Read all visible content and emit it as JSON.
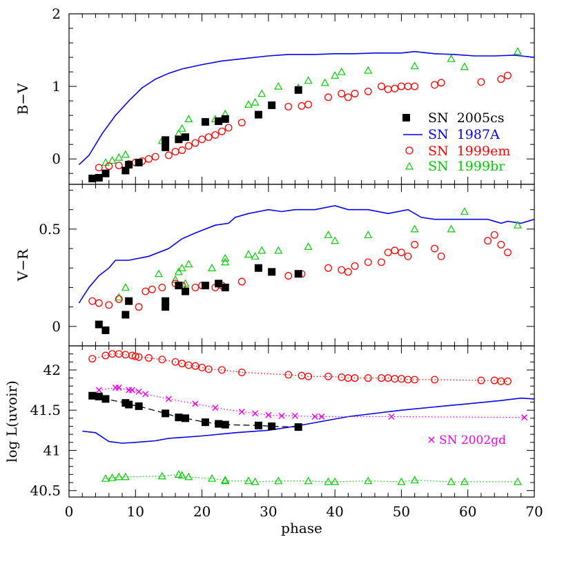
{
  "figure": {
    "xlabel": "phase",
    "xticks": [
      0,
      10,
      20,
      30,
      40,
      50,
      60,
      70
    ],
    "xlim": [
      0,
      70
    ]
  },
  "colors": {
    "sn2005cs": "#000000",
    "sn1987a": "#0000ee",
    "sn1999em": "#ff0000",
    "sn1999br": "#00cc00",
    "sn2002gd": "#ee00ee"
  },
  "legend": {
    "placement": "right",
    "entries": [
      {
        "label": "SN  2005cs",
        "key": "sn2005cs",
        "marker": "square"
      },
      {
        "label": "SN  1987A",
        "key": "sn1987a",
        "marker": "line"
      },
      {
        "label": "SN  1999em",
        "key": "sn1999em",
        "marker": "circle"
      },
      {
        "label": "SN  1999br",
        "key": "sn1999br",
        "marker": "triangle"
      }
    ]
  },
  "annotation": {
    "label": "SN 2002gd",
    "marker": "cross",
    "key": "sn2002gd"
  },
  "chart_data": [
    {
      "type": "scatter",
      "id": "bv",
      "ylabel": "B−V",
      "ylim": [
        -0.35,
        2.0
      ],
      "yticks": [
        0,
        1,
        2
      ],
      "ytick_labels": [
        "0",
        "1",
        "2"
      ],
      "series": [
        {
          "key": "sn1987a",
          "marker": "line",
          "x": [
            1.5,
            3,
            5,
            7,
            9,
            11,
            13,
            15,
            17,
            20,
            23,
            26,
            30,
            33,
            37,
            40,
            43,
            46,
            50,
            52,
            55,
            58,
            61,
            64,
            67,
            70
          ],
          "y": [
            -0.08,
            0.05,
            0.35,
            0.6,
            0.8,
            0.98,
            1.1,
            1.18,
            1.24,
            1.3,
            1.35,
            1.38,
            1.42,
            1.44,
            1.44,
            1.45,
            1.45,
            1.46,
            1.46,
            1.48,
            1.45,
            1.44,
            1.42,
            1.42,
            1.43,
            1.4
          ]
        },
        {
          "key": "sn1999br",
          "marker": "triangle",
          "x": [
            5.5,
            6.5,
            7.5,
            8.5,
            14,
            16.5,
            17,
            18,
            22,
            23.5,
            27,
            28,
            29,
            31.5,
            34.5,
            36,
            38.5,
            40,
            41,
            45,
            52,
            57.5,
            59.5,
            67.5
          ],
          "y": [
            -0.05,
            -0.02,
            0.02,
            0.06,
            0.25,
            0.35,
            0.42,
            0.55,
            0.55,
            0.62,
            0.75,
            0.78,
            0.9,
            1.0,
            0.98,
            1.08,
            1.05,
            1.15,
            1.2,
            1.22,
            1.28,
            1.38,
            1.27,
            1.48
          ]
        },
        {
          "key": "sn1999em",
          "marker": "circle",
          "x": [
            4.5,
            6,
            7.5,
            9,
            10,
            11,
            12,
            13,
            15,
            16,
            17,
            18,
            19,
            20,
            21,
            22,
            23,
            24,
            26,
            33,
            35,
            36,
            39,
            41,
            42,
            43,
            45,
            47,
            48,
            49,
            50,
            51,
            52,
            55,
            56,
            62,
            65,
            66
          ],
          "y": [
            -0.12,
            -0.1,
            -0.09,
            -0.07,
            -0.05,
            -0.03,
            0.0,
            0.03,
            0.05,
            0.1,
            0.12,
            0.18,
            0.22,
            0.27,
            0.3,
            0.33,
            0.38,
            0.43,
            0.5,
            0.72,
            0.73,
            0.75,
            0.85,
            0.9,
            0.85,
            0.9,
            0.93,
            1.0,
            0.96,
            0.97,
            1.0,
            1.0,
            1.0,
            1.02,
            1.05,
            1.06,
            1.1,
            1.15
          ]
        },
        {
          "key": "sn2005cs",
          "marker": "square",
          "x": [
            3.5,
            4.5,
            5.5,
            8.5,
            9,
            10.5,
            14.5,
            14.5,
            16.5,
            17.5,
            20.5,
            22.5,
            23.5,
            28.5,
            30.5,
            34.5
          ],
          "y": [
            -0.27,
            -0.26,
            -0.2,
            -0.16,
            -0.08,
            -0.05,
            0.16,
            0.26,
            0.27,
            0.3,
            0.51,
            0.52,
            0.55,
            0.61,
            0.74,
            0.95
          ]
        }
      ]
    },
    {
      "type": "scatter",
      "id": "vr",
      "ylabel": "V−R",
      "ylim": [
        -0.1,
        0.73
      ],
      "yticks": [
        0,
        0.5
      ],
      "ytick_labels": [
        "0",
        "0.5"
      ],
      "series": [
        {
          "key": "sn1987a",
          "marker": "line",
          "x": [
            1.5,
            3,
            4.5,
            6,
            7,
            9,
            12,
            15,
            17,
            19,
            22,
            24,
            25,
            27,
            30,
            32,
            34,
            37,
            40,
            42,
            45,
            48,
            51,
            53,
            55,
            60,
            63,
            65,
            66,
            68,
            70
          ],
          "y": [
            0.12,
            0.2,
            0.26,
            0.3,
            0.34,
            0.34,
            0.36,
            0.4,
            0.45,
            0.48,
            0.52,
            0.53,
            0.56,
            0.58,
            0.6,
            0.59,
            0.6,
            0.6,
            0.62,
            0.6,
            0.6,
            0.58,
            0.6,
            0.56,
            0.55,
            0.55,
            0.55,
            0.53,
            0.54,
            0.53,
            0.55
          ]
        },
        {
          "key": "sn1999br",
          "marker": "triangle",
          "x": [
            7.5,
            8.5,
            13.5,
            16,
            16.5,
            17,
            17.5,
            18,
            21.5,
            23.5,
            23.5,
            27,
            28,
            29,
            31.5,
            36,
            39,
            40,
            45,
            52,
            57.5,
            59.5,
            67.5
          ],
          "y": [
            0.15,
            0.2,
            0.27,
            0.24,
            0.28,
            0.3,
            0.22,
            0.32,
            0.3,
            0.33,
            0.35,
            0.37,
            0.36,
            0.39,
            0.39,
            0.41,
            0.47,
            0.44,
            0.47,
            0.5,
            0.5,
            0.59,
            0.52
          ]
        },
        {
          "key": "sn1999em",
          "marker": "circle",
          "x": [
            3.5,
            4.5,
            6,
            7.5,
            9,
            10.5,
            11.5,
            12.5,
            14,
            16,
            17,
            19,
            20,
            22,
            23,
            26,
            33,
            35,
            39,
            41,
            42,
            43,
            45,
            47,
            48,
            49,
            50,
            51,
            52,
            55,
            56,
            63,
            64,
            65,
            66
          ],
          "y": [
            0.13,
            0.12,
            0.11,
            0.14,
            0.13,
            0.1,
            0.18,
            0.19,
            0.2,
            0.22,
            0.21,
            0.2,
            0.21,
            0.2,
            0.21,
            0.23,
            0.26,
            0.27,
            0.3,
            0.29,
            0.28,
            0.31,
            0.33,
            0.33,
            0.38,
            0.39,
            0.38,
            0.36,
            0.42,
            0.4,
            0.36,
            0.44,
            0.47,
            0.42,
            0.38
          ]
        },
        {
          "key": "sn2005cs",
          "marker": "square",
          "x": [
            4.5,
            5.5,
            8.5,
            9,
            14.5,
            14.5,
            16.5,
            17.5,
            20.5,
            22.5,
            23.5,
            28.5,
            30.5,
            34.5
          ],
          "y": [
            0.01,
            -0.02,
            0.06,
            0.13,
            0.1,
            0.13,
            0.21,
            0.18,
            0.21,
            0.22,
            0.2,
            0.3,
            0.28,
            0.27
          ]
        }
      ]
    },
    {
      "type": "scatter",
      "id": "luvoir",
      "ylabel": "log L(uvoir)",
      "ylim": [
        40.42,
        42.3
      ],
      "yticks": [
        40.5,
        41,
        41.5,
        42
      ],
      "ytick_labels": [
        "40.5",
        "41",
        "41.5",
        "42"
      ],
      "series": [
        {
          "key": "sn1987a",
          "marker": "line",
          "x": [
            2,
            4,
            6,
            8,
            10,
            13,
            15,
            20,
            25,
            30,
            34,
            38,
            42,
            45,
            50,
            55,
            60,
            65,
            68,
            70
          ],
          "y": [
            41.24,
            41.22,
            41.11,
            41.09,
            41.1,
            41.12,
            41.15,
            41.18,
            41.22,
            41.25,
            41.3,
            41.36,
            41.42,
            41.45,
            41.5,
            41.54,
            41.58,
            41.62,
            41.65,
            41.64
          ]
        },
        {
          "key": "sn1999em",
          "marker": "circle",
          "line": "dotted",
          "x": [
            3.5,
            5.5,
            6.5,
            7.5,
            8.5,
            9.5,
            10,
            10.5,
            12,
            14,
            16,
            17,
            18,
            19,
            20,
            21,
            23,
            26,
            33,
            35,
            36,
            39,
            41,
            42,
            43,
            45,
            47,
            48,
            49,
            50,
            51,
            52,
            55,
            62,
            64,
            65,
            66
          ],
          "y": [
            42.14,
            42.18,
            42.2,
            42.2,
            42.19,
            42.18,
            42.17,
            42.16,
            42.15,
            42.13,
            42.1,
            42.08,
            42.06,
            42.05,
            42.03,
            42.01,
            42.0,
            41.97,
            41.94,
            41.93,
            41.92,
            41.92,
            41.91,
            41.9,
            41.9,
            41.9,
            41.9,
            41.9,
            41.89,
            41.89,
            41.88,
            41.88,
            41.88,
            41.87,
            41.87,
            41.86,
            41.86
          ]
        },
        {
          "key": "sn2002gd",
          "marker": "cross",
          "line": "dotted",
          "x": [
            4.5,
            7,
            7.5,
            9,
            9.5,
            10.5,
            11.5,
            15,
            19,
            22,
            26,
            28,
            30,
            32,
            34,
            37,
            38,
            48.5,
            68.5
          ],
          "y": [
            41.75,
            41.78,
            41.78,
            41.75,
            41.75,
            41.73,
            41.7,
            41.64,
            41.58,
            41.53,
            41.48,
            41.46,
            41.44,
            41.43,
            41.43,
            41.42,
            41.42,
            41.42,
            41.41
          ]
        },
        {
          "key": "sn2005cs",
          "marker": "square",
          "line": "dashed",
          "x": [
            3.5,
            4.5,
            5.5,
            8.5,
            9,
            10.5,
            14.5,
            16.5,
            17.5,
            20.5,
            22.5,
            23.5,
            28.5,
            30.5,
            34.5
          ],
          "y": [
            41.68,
            41.67,
            41.64,
            41.59,
            41.57,
            41.55,
            41.46,
            41.41,
            41.4,
            41.35,
            41.33,
            41.32,
            41.31,
            41.3,
            41.29
          ]
        },
        {
          "key": "sn1999br",
          "marker": "triangle",
          "line": "dotted",
          "x": [
            5.5,
            6.5,
            7.5,
            8.5,
            14,
            16.5,
            17,
            18,
            21.5,
            23.5,
            23.5,
            27,
            28,
            31.5,
            36,
            39,
            40,
            45,
            50,
            52,
            57.5,
            59.5,
            67.5
          ],
          "y": [
            40.65,
            40.66,
            40.67,
            40.67,
            40.68,
            40.7,
            40.69,
            40.67,
            40.65,
            40.63,
            40.62,
            40.62,
            40.61,
            40.62,
            40.62,
            40.61,
            40.61,
            40.62,
            40.61,
            40.63,
            40.61,
            40.61,
            40.61
          ]
        }
      ]
    }
  ]
}
